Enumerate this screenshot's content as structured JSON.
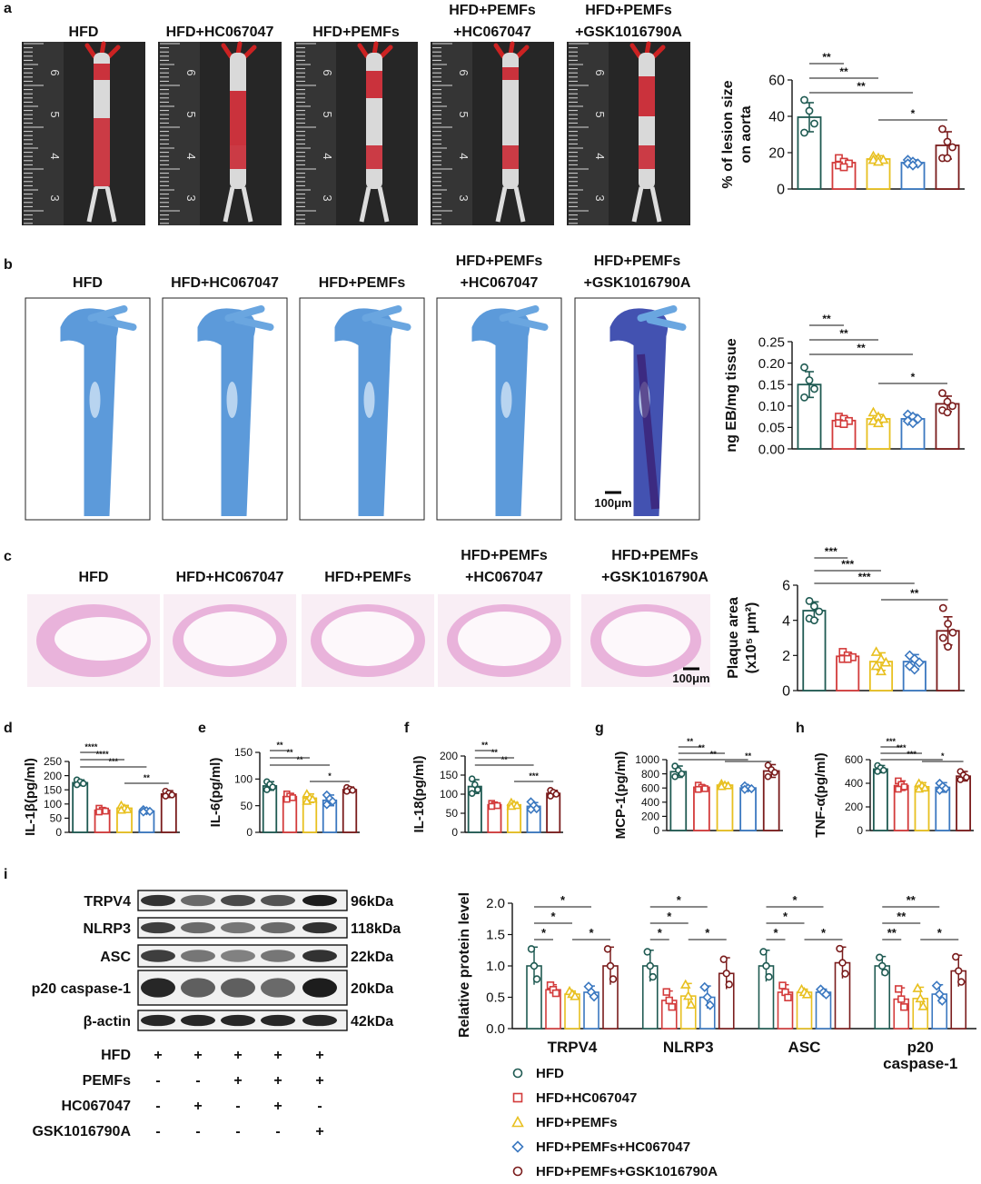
{
  "panel_letters": [
    "a",
    "b",
    "c",
    "d",
    "e",
    "f",
    "g",
    "h",
    "i"
  ],
  "groups": [
    "HFD",
    "HFD+HC067047",
    "HFD+PEMFs",
    "HFD+PEMFs+HC067047",
    "HFD+PEMFs+GSK1016790A"
  ],
  "group_colors": [
    "#1f5a52",
    "#d33b3b",
    "#e8c020",
    "#3b78c0",
    "#7a1c1c"
  ],
  "legend_markers": [
    "circle",
    "square",
    "triangle",
    "diamond",
    "circle"
  ],
  "photo_labels": {
    "a": [
      [
        "HFD"
      ],
      [
        "HFD+HC067047"
      ],
      [
        "HFD+PEMFs"
      ],
      [
        "HFD+PEMFs",
        "+HC067047"
      ],
      [
        "HFD+PEMFs",
        "+GSK1016790A"
      ]
    ],
    "b": [
      [
        "HFD"
      ],
      [
        "HFD+HC067047"
      ],
      [
        "HFD+PEMFs"
      ],
      [
        "HFD+PEMFs",
        "+HC067047"
      ],
      [
        "HFD+PEMFs",
        "+GSK1016790A"
      ]
    ],
    "c": [
      [
        "HFD"
      ],
      [
        "HFD+HC067047"
      ],
      [
        "HFD+PEMFs"
      ],
      [
        "HFD+PEMFs",
        "+HC067047"
      ],
      [
        "HFD+PEMFs",
        "+GSK1016790A"
      ]
    ]
  },
  "ruler_ticks": [
    "6",
    "5",
    "4",
    "3"
  ],
  "scale_bars": {
    "b": "100μm",
    "c": "100μm"
  },
  "western_blot": {
    "rows": [
      {
        "protein": "TRPV4",
        "size": "96kDa"
      },
      {
        "protein": "NLRP3",
        "size": "118kDa"
      },
      {
        "protein": "ASC",
        "size": "22kDa"
      },
      {
        "protein": "p20 caspase-1",
        "size": "20kDa"
      },
      {
        "protein": "β-actin",
        "size": "42kDa"
      }
    ],
    "treatment_table": [
      {
        "label": "HFD",
        "values": [
          "+",
          "+",
          "+",
          "+",
          "+"
        ]
      },
      {
        "label": "PEMFs",
        "values": [
          "-",
          "-",
          "+",
          "+",
          "+"
        ]
      },
      {
        "label": "HC067047",
        "values": [
          "-",
          "+",
          "-",
          "+",
          "-"
        ]
      },
      {
        "label": "GSK1016790A",
        "values": [
          "-",
          "-",
          "-",
          "-",
          "+"
        ]
      }
    ]
  },
  "chart_data": [
    {
      "panel": "a",
      "type": "bar",
      "ylabel": [
        "% of lesion size",
        "on aorta"
      ],
      "ylim": [
        0,
        60
      ],
      "ticks": [
        "0",
        "20",
        "40",
        "60"
      ],
      "tick_values": [
        0,
        20,
        40,
        60
      ],
      "values": [
        39.5,
        14.5,
        16.5,
        14.5,
        24
      ],
      "errors": [
        8,
        1.8,
        1.8,
        1.5,
        7.5
      ],
      "points": [
        [
          49,
          43,
          36,
          31
        ],
        [
          17,
          15,
          14,
          13,
          12
        ],
        [
          18,
          17,
          16,
          16,
          15
        ],
        [
          16,
          15,
          14,
          14,
          13
        ],
        [
          33,
          26,
          23,
          17,
          17
        ]
      ],
      "significance": [
        {
          "from": 0,
          "to": 1,
          "label": "**"
        },
        {
          "from": 0,
          "to": 2,
          "label": "**"
        },
        {
          "from": 0,
          "to": 3,
          "label": "**"
        },
        {
          "from": 2,
          "to": 4,
          "label": "*"
        }
      ]
    },
    {
      "panel": "b",
      "type": "bar",
      "ylabel": [
        "ng EB/mg tissue"
      ],
      "ylim": [
        0,
        0.25
      ],
      "ticks": [
        "0.00",
        "0.05",
        "0.10",
        "0.15",
        "0.20",
        "0.25"
      ],
      "tick_values": [
        0,
        0.05,
        0.1,
        0.15,
        0.2,
        0.25
      ],
      "values": [
        0.15,
        0.066,
        0.07,
        0.07,
        0.105
      ],
      "errors": [
        0.03,
        0.008,
        0.01,
        0.01,
        0.018
      ],
      "points": [
        [
          0.19,
          0.16,
          0.14,
          0.12
        ],
        [
          0.075,
          0.07,
          0.065,
          0.06,
          0.058
        ],
        [
          0.085,
          0.075,
          0.07,
          0.065,
          0.06
        ],
        [
          0.08,
          0.075,
          0.07,
          0.065,
          0.06
        ],
        [
          0.13,
          0.11,
          0.1,
          0.09,
          0.085
        ]
      ],
      "significance": [
        {
          "from": 0,
          "to": 1,
          "label": "**"
        },
        {
          "from": 0,
          "to": 2,
          "label": "**"
        },
        {
          "from": 0,
          "to": 3,
          "label": "**"
        },
        {
          "from": 2,
          "to": 4,
          "label": "*"
        }
      ]
    },
    {
      "panel": "c",
      "type": "bar",
      "ylabel": [
        "Plaque area",
        "(x10⁵ μm²)"
      ],
      "ylim": [
        0,
        6
      ],
      "ticks": [
        "0",
        "2",
        "4",
        "6"
      ],
      "tick_values": [
        0,
        2,
        4,
        6
      ],
      "values": [
        4.55,
        1.95,
        1.65,
        1.65,
        3.4
      ],
      "errors": [
        0.5,
        0.2,
        0.5,
        0.4,
        0.8
      ],
      "points": [
        [
          5.1,
          4.8,
          4.5,
          4.1,
          4.0
        ],
        [
          2.2,
          2.0,
          1.9,
          1.8,
          1.8
        ],
        [
          2.2,
          1.8,
          1.6,
          1.4,
          1.1
        ],
        [
          2.0,
          1.8,
          1.6,
          1.4,
          1.2
        ],
        [
          4.7,
          3.8,
          3.3,
          3.0,
          2.5
        ]
      ],
      "significance": [
        {
          "from": 0,
          "to": 1,
          "label": "***"
        },
        {
          "from": 0,
          "to": 2,
          "label": "***"
        },
        {
          "from": 0,
          "to": 3,
          "label": "***"
        },
        {
          "from": 2,
          "to": 4,
          "label": "**"
        }
      ]
    },
    {
      "panel": "d",
      "type": "bar",
      "ylabel": [
        "IL-1β(pg/ml)"
      ],
      "ylim": [
        0,
        250
      ],
      "ticks": [
        "0",
        "50",
        "100",
        "150",
        "200",
        "250"
      ],
      "tick_values": [
        0,
        50,
        100,
        150,
        200,
        250
      ],
      "values": [
        175,
        78,
        85,
        75,
        135
      ],
      "errors": [
        10,
        8,
        10,
        5,
        12
      ],
      "points": [
        [
          185,
          178,
          172,
          168
        ],
        [
          85,
          78,
          75,
          72
        ],
        [
          95,
          85,
          80,
          78
        ],
        [
          80,
          76,
          74,
          72
        ],
        [
          145,
          138,
          132,
          128
        ]
      ],
      "significance": [
        {
          "from": 0,
          "to": 1,
          "label": "****"
        },
        {
          "from": 0,
          "to": 2,
          "label": "****"
        },
        {
          "from": 0,
          "to": 3,
          "label": "***"
        },
        {
          "from": 2,
          "to": 4,
          "label": "**"
        }
      ]
    },
    {
      "panel": "e",
      "type": "bar",
      "ylabel": [
        "IL-6(pg/ml)"
      ],
      "ylim": [
        0,
        150
      ],
      "ticks": [
        "0",
        "50",
        "100",
        "150"
      ],
      "tick_values": [
        0,
        50,
        100,
        150
      ],
      "values": [
        87,
        67,
        64,
        60,
        80
      ],
      "errors": [
        8,
        6,
        8,
        10,
        5
      ],
      "points": [
        [
          95,
          90,
          85,
          80
        ],
        [
          72,
          68,
          65,
          62
        ],
        [
          72,
          65,
          62,
          58
        ],
        [
          70,
          63,
          58,
          52
        ],
        [
          84,
          81,
          79,
          77
        ]
      ],
      "significance": [
        {
          "from": 0,
          "to": 1,
          "label": "**"
        },
        {
          "from": 0,
          "to": 2,
          "label": "**"
        },
        {
          "from": 0,
          "to": 3,
          "label": "**"
        },
        {
          "from": 2,
          "to": 4,
          "label": "*"
        }
      ]
    },
    {
      "panel": "f",
      "type": "bar",
      "ylabel": [
        "IL-18(pg/ml)"
      ],
      "ylim": [
        0,
        200
      ],
      "ticks": [
        "0",
        "50",
        "100",
        "150",
        "200"
      ],
      "tick_values": [
        0,
        50,
        100,
        150,
        200
      ],
      "values": [
        120,
        72,
        72,
        68,
        102
      ],
      "errors": [
        18,
        4,
        6,
        10,
        8
      ],
      "points": [
        [
          140,
          125,
          112,
          102
        ],
        [
          76,
          72,
          70,
          68
        ],
        [
          78,
          73,
          70,
          68
        ],
        [
          80,
          70,
          62,
          60
        ],
        [
          110,
          105,
          100,
          95
        ]
      ],
      "significance": [
        {
          "from": 0,
          "to": 1,
          "label": "**"
        },
        {
          "from": 0,
          "to": 2,
          "label": "**"
        },
        {
          "from": 0,
          "to": 3,
          "label": "**"
        },
        {
          "from": 2,
          "to": 4,
          "label": "***"
        }
      ]
    },
    {
      "panel": "g",
      "type": "bar",
      "ylabel": [
        "MCP-1(pg/ml)"
      ],
      "ylim": [
        0,
        1000
      ],
      "ticks": [
        "0",
        "200",
        "400",
        "600",
        "800",
        "1000"
      ],
      "tick_values": [
        0,
        200,
        400,
        600,
        800,
        1000
      ],
      "values": [
        830,
        610,
        640,
        600,
        840
      ],
      "errors": [
        80,
        30,
        30,
        30,
        90
      ],
      "points": [
        [
          910,
          850,
          800,
          760
        ],
        [
          640,
          610,
          590,
          580
        ],
        [
          660,
          640,
          630,
          620
        ],
        [
          630,
          600,
          590,
          580
        ],
        [
          920,
          860,
          820,
          760
        ]
      ],
      "significance": [
        {
          "from": 0,
          "to": 1,
          "label": "**"
        },
        {
          "from": 0,
          "to": 2,
          "label": "**"
        },
        {
          "from": 0,
          "to": 3,
          "label": "**"
        },
        {
          "from": 2,
          "to": 4,
          "label": "**"
        }
      ]
    },
    {
      "panel": "h",
      "type": "bar",
      "ylabel": [
        "TNF-α(pg/ml)"
      ],
      "ylim": [
        0,
        600
      ],
      "ticks": [
        "0",
        "200",
        "400",
        "600"
      ],
      "tick_values": [
        0,
        200,
        400,
        600
      ],
      "values": [
        520,
        380,
        370,
        365,
        460
      ],
      "errors": [
        30,
        40,
        35,
        40,
        40
      ],
      "points": [
        [
          550,
          530,
          510,
          500
        ],
        [
          420,
          390,
          370,
          350
        ],
        [
          400,
          380,
          360,
          350
        ],
        [
          400,
          375,
          355,
          340
        ],
        [
          500,
          470,
          450,
          430
        ]
      ],
      "significance": [
        {
          "from": 0,
          "to": 1,
          "label": "***"
        },
        {
          "from": 0,
          "to": 2,
          "label": "***"
        },
        {
          "from": 0,
          "to": 3,
          "label": "***"
        },
        {
          "from": 2,
          "to": 4,
          "label": "*"
        }
      ]
    },
    {
      "panel": "i",
      "type": "bar",
      "ylabel": [
        "Relative protein level"
      ],
      "ylim": [
        0,
        2.0
      ],
      "ticks": [
        "0.0",
        "0.5",
        "1.0",
        "1.5",
        "2.0"
      ],
      "tick_values": [
        0,
        0.5,
        1.0,
        1.5,
        2.0
      ],
      "categories": [
        "TRPV4",
        "NLRP3",
        "ASC",
        [
          "p20",
          "caspase-1"
        ]
      ],
      "series_values": [
        [
          1.0,
          0.62,
          0.55,
          0.58,
          1.0
        ],
        [
          1.0,
          0.45,
          0.52,
          0.5,
          0.88
        ],
        [
          1.0,
          0.58,
          0.58,
          0.58,
          1.05
        ],
        [
          1.0,
          0.47,
          0.48,
          0.55,
          0.92
        ]
      ],
      "series_errors": [
        [
          0.3,
          0.08,
          0.05,
          0.1,
          0.3
        ],
        [
          0.25,
          0.15,
          0.2,
          0.18,
          0.25
        ],
        [
          0.25,
          0.12,
          0.05,
          0.05,
          0.25
        ],
        [
          0.15,
          0.18,
          0.18,
          0.15,
          0.25
        ]
      ],
      "significance": [
        [
          {
            "from": 0,
            "to": 1,
            "label": "*"
          },
          {
            "from": 0,
            "to": 2,
            "label": "*"
          },
          {
            "from": 0,
            "to": 3,
            "label": "*"
          },
          {
            "from": 2,
            "to": 4,
            "label": "*"
          }
        ],
        [
          {
            "from": 0,
            "to": 1,
            "label": "*"
          },
          {
            "from": 0,
            "to": 2,
            "label": "*"
          },
          {
            "from": 0,
            "to": 3,
            "label": "*"
          },
          {
            "from": 2,
            "to": 4,
            "label": "*"
          }
        ],
        [
          {
            "from": 0,
            "to": 1,
            "label": "*"
          },
          {
            "from": 0,
            "to": 2,
            "label": "*"
          },
          {
            "from": 0,
            "to": 3,
            "label": "*"
          },
          {
            "from": 2,
            "to": 4,
            "label": "*"
          }
        ],
        [
          {
            "from": 0,
            "to": 1,
            "label": "**"
          },
          {
            "from": 0,
            "to": 2,
            "label": "**"
          },
          {
            "from": 0,
            "to": 3,
            "label": "**"
          },
          {
            "from": 2,
            "to": 4,
            "label": "*"
          }
        ]
      ]
    }
  ]
}
